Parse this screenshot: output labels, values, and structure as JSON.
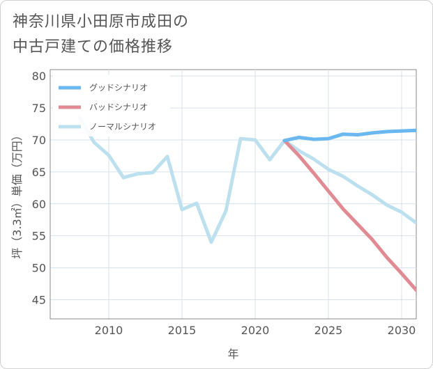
{
  "title": {
    "line1": "神奈川県小田原市成田の",
    "line2": "中古戸建ての価格推移"
  },
  "colors": {
    "good": "#6ab8ef",
    "bad": "#e08a94",
    "normal": "#bde0ee",
    "grid": "#d6e1ea",
    "axis": "#555555"
  },
  "chart_data": {
    "type": "line",
    "title": "神奈川県小田原市成田の中古戸建ての価格推移",
    "xlabel": "年",
    "ylabel": "坪（3.3㎡）単価（万円）",
    "xlim": [
      2006,
      2031
    ],
    "ylim": [
      42,
      81
    ],
    "xticks": [
      2010,
      2015,
      2020,
      2025,
      2030
    ],
    "yticks": [
      45,
      50,
      55,
      60,
      65,
      70,
      75,
      80
    ],
    "grid": true,
    "legend_position": "top-left",
    "series": [
      {
        "name": "グッドシナリオ",
        "color": "#6ab8ef",
        "x": [
          2022,
          2023,
          2024,
          2025,
          2026,
          2027,
          2028,
          2029,
          2030,
          2031
        ],
        "y": [
          69.9,
          70.4,
          70.1,
          70.2,
          70.9,
          70.8,
          71.1,
          71.3,
          71.4,
          71.5
        ]
      },
      {
        "name": "バッドシナリオ",
        "color": "#e08a94",
        "x": [
          2022,
          2023,
          2024,
          2025,
          2026,
          2027,
          2028,
          2029,
          2030,
          2031
        ],
        "y": [
          69.9,
          67.5,
          64.8,
          62.0,
          59.2,
          56.8,
          54.4,
          51.6,
          49.1,
          46.5
        ]
      },
      {
        "name": "ノーマルシナリオ",
        "color": "#bde0ee",
        "x": [
          2008,
          2009,
          2010,
          2011,
          2012,
          2013,
          2014,
          2015,
          2016,
          2017,
          2018,
          2019,
          2020,
          2021,
          2022,
          2023,
          2024,
          2025,
          2026,
          2027,
          2028,
          2029,
          2030,
          2031
        ],
        "y": [
          73.5,
          69.6,
          67.6,
          64.1,
          64.7,
          64.9,
          67.4,
          59.1,
          60.1,
          54.0,
          58.9,
          70.2,
          70.0,
          66.9,
          69.9,
          68.3,
          67.0,
          65.4,
          64.3,
          62.8,
          61.4,
          59.8,
          58.7,
          57.0
        ]
      }
    ]
  }
}
